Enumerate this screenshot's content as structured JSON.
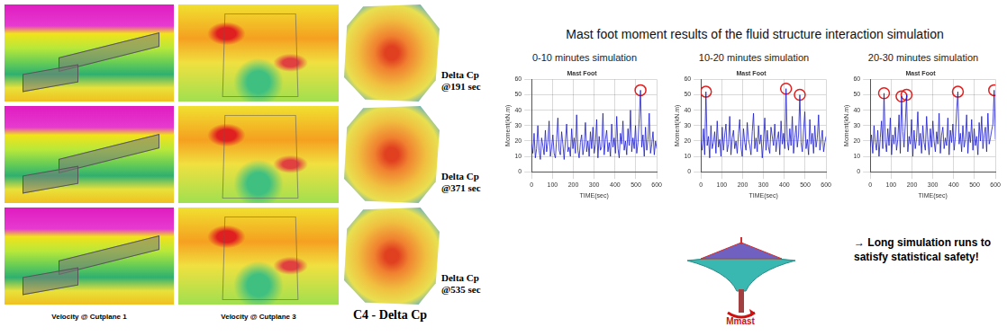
{
  "left_panel": {
    "cutplanes": [
      "Velocity @ Cutplane 1",
      "Velocity @ Cutplane 3"
    ],
    "caption": "C4 - Delta Cp",
    "snapshots": [
      {
        "label": "Delta Cp",
        "time": "@191 sec"
      },
      {
        "label": "Delta Cp",
        "time": "@371 sec"
      },
      {
        "label": "Delta Cp",
        "time": "@535 sec"
      }
    ]
  },
  "right_panel": {
    "title": "Mast foot moment results of the fluid structure interaction simulation",
    "note": "→ Long simulation runs to satisfy statistical safety!",
    "moment_label": "Mmast"
  },
  "chart_data": [
    {
      "type": "line",
      "subtitle": "0-10 minutes simulation",
      "title": "Mast Foot",
      "x_label": "TIME(sec)",
      "y_label": "Moment(kN.m)",
      "color": "#1a1acc",
      "grid": true,
      "xlim": [
        0,
        600
      ],
      "xticks": [
        0,
        100,
        200,
        300,
        400,
        500,
        600
      ],
      "ylim": [
        0,
        60
      ],
      "yticks": [
        0,
        10,
        20,
        30,
        40,
        50,
        60
      ],
      "highlighted_x": [
        522
      ],
      "x": [
        0,
        6,
        12,
        18,
        24,
        30,
        36,
        42,
        48,
        54,
        60,
        66,
        72,
        78,
        84,
        90,
        96,
        102,
        108,
        114,
        120,
        126,
        132,
        138,
        144,
        150,
        156,
        162,
        168,
        174,
        180,
        186,
        192,
        198,
        204,
        210,
        216,
        222,
        228,
        234,
        240,
        246,
        252,
        258,
        264,
        270,
        276,
        282,
        288,
        294,
        300,
        306,
        312,
        318,
        324,
        330,
        336,
        342,
        348,
        354,
        360,
        366,
        372,
        378,
        384,
        390,
        396,
        402,
        408,
        414,
        420,
        426,
        432,
        438,
        444,
        450,
        456,
        462,
        468,
        474,
        480,
        486,
        492,
        498,
        504,
        510,
        516,
        522,
        528,
        534,
        540,
        546,
        552,
        558,
        564,
        570,
        576,
        582,
        588,
        594,
        600
      ],
      "values": [
        18,
        12,
        25,
        9,
        15,
        30,
        14,
        8,
        22,
        17,
        11,
        27,
        13,
        19,
        33,
        10,
        16,
        24,
        12,
        9,
        21,
        35,
        14,
        11,
        26,
        18,
        8,
        20,
        31,
        13,
        16,
        10,
        28,
        15,
        22,
        12,
        37,
        14,
        9,
        19,
        24,
        11,
        17,
        32,
        13,
        20,
        10,
        26,
        15,
        29,
        12,
        18,
        34,
        9,
        23,
        14,
        16,
        38,
        11,
        21,
        27,
        13,
        19,
        10,
        31,
        16,
        22,
        12,
        36,
        15,
        9,
        25,
        18,
        33,
        14,
        20,
        11,
        28,
        17,
        40,
        13,
        22,
        15,
        30,
        12,
        19,
        35,
        53,
        16,
        24,
        10,
        29,
        14,
        21,
        38,
        12,
        18,
        26,
        11,
        20,
        15
      ]
    },
    {
      "type": "line",
      "subtitle": "10-20 minutes simulation",
      "title": "Mast Foot",
      "x_label": "TIME(sec)",
      "y_label": "Moment(kN.m)",
      "color": "#1a1acc",
      "grid": true,
      "xlim": [
        0,
        600
      ],
      "xticks": [
        0,
        100,
        200,
        300,
        400,
        500,
        600
      ],
      "ylim": [
        0,
        60
      ],
      "yticks": [
        0,
        10,
        20,
        30,
        40,
        50,
        60
      ],
      "highlighted_x": [
        24,
        408,
        474
      ],
      "x": [
        0,
        6,
        12,
        18,
        24,
        30,
        36,
        42,
        48,
        54,
        60,
        66,
        72,
        78,
        84,
        90,
        96,
        102,
        108,
        114,
        120,
        126,
        132,
        138,
        144,
        150,
        156,
        162,
        168,
        174,
        180,
        186,
        192,
        198,
        204,
        210,
        216,
        222,
        228,
        234,
        240,
        246,
        252,
        258,
        264,
        270,
        276,
        282,
        288,
        294,
        300,
        306,
        312,
        318,
        324,
        330,
        336,
        342,
        348,
        354,
        360,
        366,
        372,
        378,
        384,
        390,
        396,
        402,
        408,
        414,
        420,
        426,
        432,
        438,
        444,
        450,
        456,
        462,
        468,
        474,
        480,
        486,
        492,
        498,
        504,
        510,
        516,
        522,
        528,
        534,
        540,
        546,
        552,
        558,
        564,
        570,
        576,
        582,
        588,
        594,
        600
      ],
      "values": [
        20,
        14,
        28,
        11,
        52,
        17,
        23,
        9,
        30,
        15,
        19,
        26,
        12,
        33,
        16,
        21,
        10,
        29,
        14,
        24,
        31,
        13,
        18,
        36,
        11,
        22,
        27,
        15,
        20,
        12,
        25,
        34,
        16,
        10,
        28,
        19,
        14,
        32,
        21,
        17,
        11,
        26,
        38,
        15,
        22,
        13,
        30,
        18,
        24,
        9,
        20,
        35,
        14,
        27,
        16,
        12,
        29,
        23,
        17,
        31,
        13,
        21,
        26,
        11,
        33,
        18,
        25,
        15,
        54,
        20,
        14,
        28,
        17,
        36,
        12,
        22,
        30,
        16,
        24,
        50,
        19,
        13,
        27,
        39,
        15,
        21,
        11,
        34,
        18,
        25,
        12,
        30,
        16,
        22,
        37,
        14,
        20,
        27,
        13,
        19,
        23
      ]
    },
    {
      "type": "line",
      "subtitle": "20-30 minutes simulation",
      "title": "Mast Foot",
      "x_label": "TIME(sec)",
      "y_label": "Moment(kN.m)",
      "color": "#1a1acc",
      "grid": true,
      "xlim": [
        0,
        600
      ],
      "xticks": [
        0,
        100,
        200,
        300,
        400,
        500,
        600
      ],
      "ylim": [
        0,
        60
      ],
      "yticks": [
        0,
        10,
        20,
        30,
        40,
        50,
        60
      ],
      "highlighted_x": [
        66,
        150,
        174,
        420,
        594
      ],
      "x": [
        0,
        6,
        12,
        18,
        24,
        30,
        36,
        42,
        48,
        54,
        60,
        66,
        72,
        78,
        84,
        90,
        96,
        102,
        108,
        114,
        120,
        126,
        132,
        138,
        144,
        150,
        156,
        162,
        168,
        174,
        180,
        186,
        192,
        198,
        204,
        210,
        216,
        222,
        228,
        234,
        240,
        246,
        252,
        258,
        264,
        270,
        276,
        282,
        288,
        294,
        300,
        306,
        312,
        318,
        324,
        330,
        336,
        342,
        348,
        354,
        360,
        366,
        372,
        378,
        384,
        390,
        396,
        402,
        408,
        414,
        420,
        426,
        432,
        438,
        444,
        450,
        456,
        462,
        468,
        474,
        480,
        486,
        492,
        498,
        504,
        510,
        516,
        522,
        528,
        534,
        540,
        546,
        552,
        558,
        564,
        570,
        576,
        582,
        588,
        594,
        600
      ],
      "values": [
        16,
        24,
        12,
        30,
        19,
        14,
        27,
        10,
        22,
        33,
        15,
        51,
        20,
        13,
        28,
        17,
        35,
        11,
        24,
        18,
        29,
        14,
        21,
        37,
        12,
        49,
        26,
        16,
        31,
        50,
        13,
        23,
        18,
        34,
        10,
        27,
        15,
        22,
        39,
        17,
        25,
        12,
        30,
        19,
        14,
        36,
        21,
        11,
        28,
        16,
        33,
        20,
        13,
        26,
        18,
        38,
        12,
        24,
        29,
        15,
        22,
        17,
        35,
        11,
        27,
        19,
        31,
        14,
        23,
        40,
        52,
        18,
        25,
        13,
        30,
        16,
        21,
        37,
        12,
        26,
        19,
        34,
        14,
        28,
        17,
        23,
        11,
        32,
        20,
        36,
        15,
        24,
        29,
        13,
        38,
        18,
        22,
        27,
        31,
        53,
        21
      ]
    }
  ]
}
